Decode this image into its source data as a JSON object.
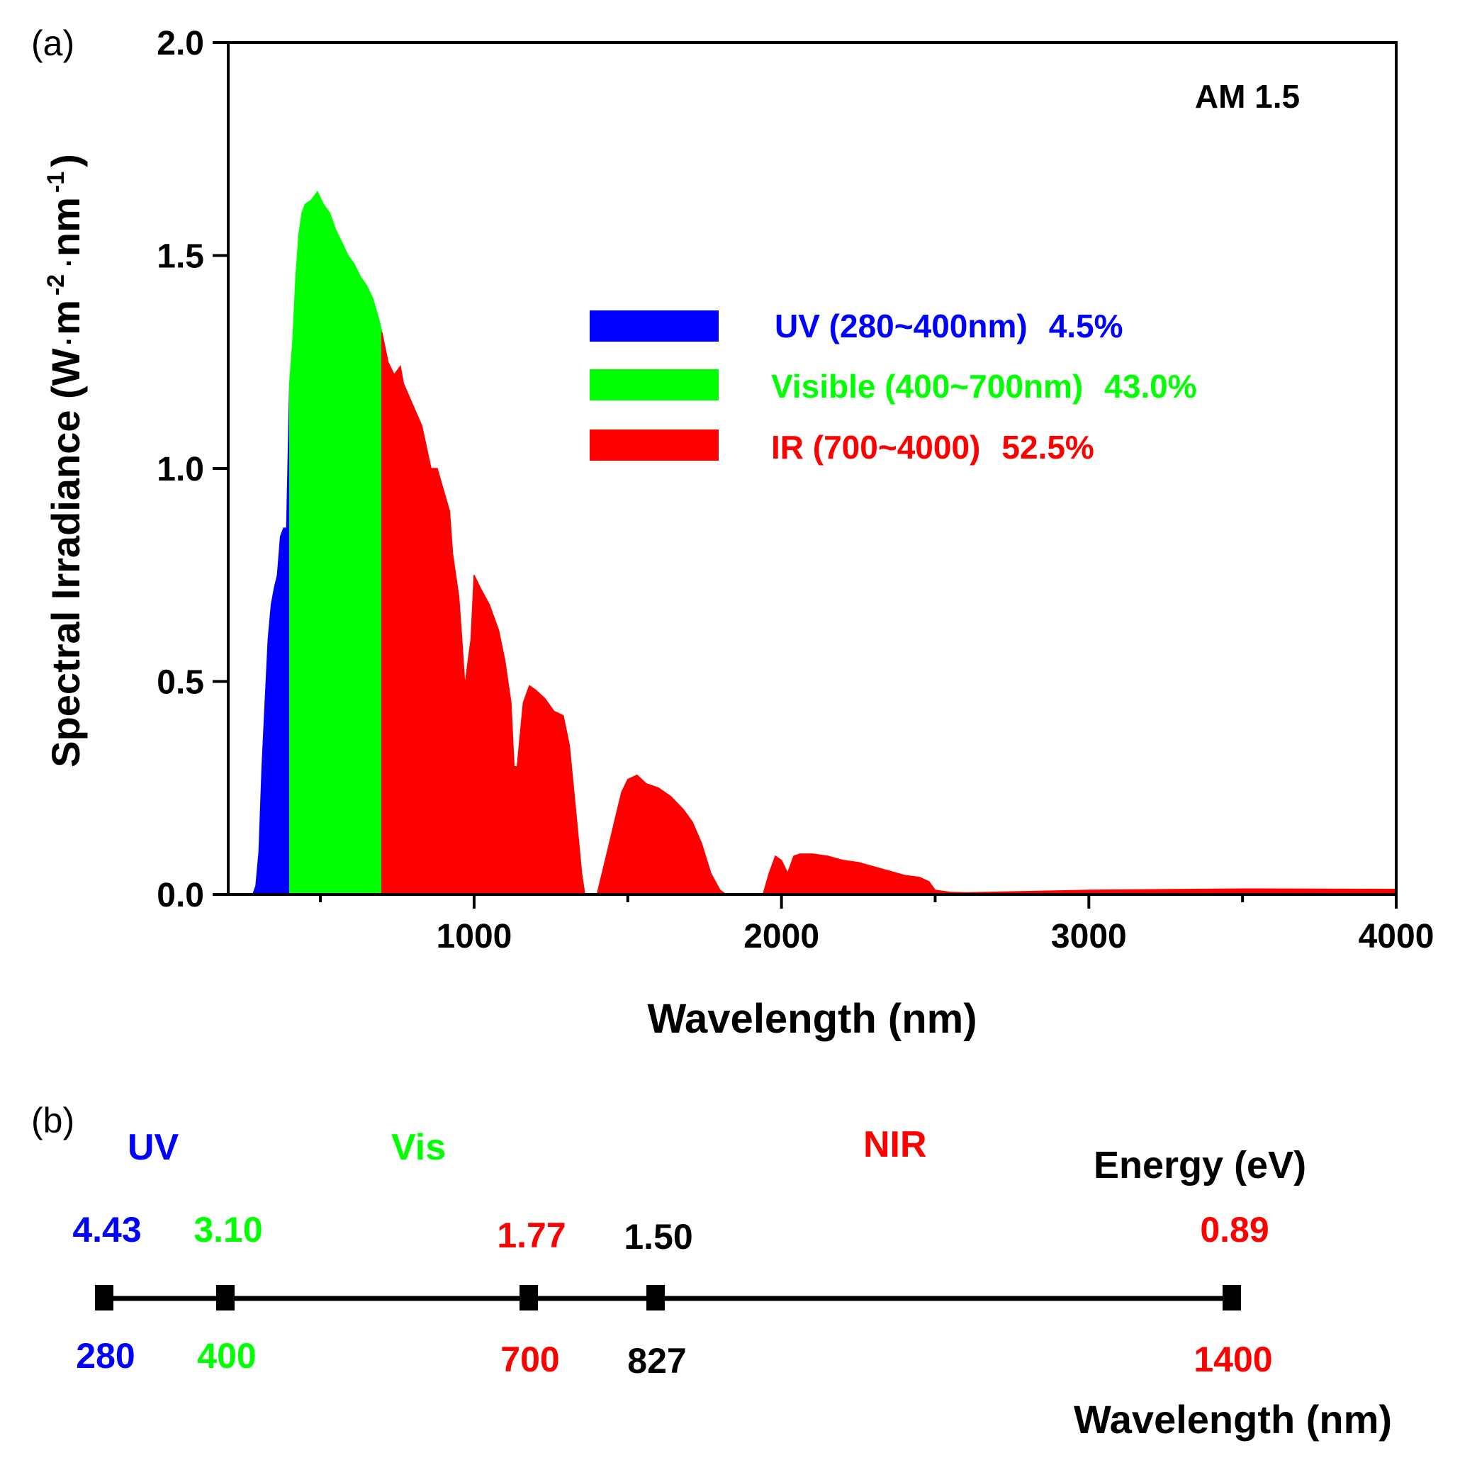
{
  "panel_a": {
    "label": "(a)",
    "chart_data": {
      "type": "area",
      "title": "AM 1.5",
      "xlabel": "Wavelength (nm)",
      "ylabel_main": "Spectral Irradiance (W",
      "ylabel_dot1": "·",
      "ylabel_m": "m",
      "ylabel_sup1": "-2",
      "ylabel_dot2": "·",
      "ylabel_nm": "nm",
      "ylabel_sup2": "-1",
      "ylabel_close": ")",
      "xlim": [
        200,
        4000
      ],
      "ylim": [
        0.0,
        2.0
      ],
      "xticks": [
        1000,
        2000,
        3000,
        4000
      ],
      "xtick_labels": [
        "1000",
        "2000",
        "3000",
        "4000"
      ],
      "yticks": [
        0.0,
        0.5,
        1.0,
        1.5,
        2.0
      ],
      "ytick_labels": [
        "0.0",
        "0.5",
        "1.0",
        "1.5",
        "2.0"
      ],
      "series": [
        {
          "name": "UV",
          "legend": "UV (280~400nm)",
          "percent": "4.5%",
          "color": "#0000ff",
          "x": [
            280,
            290,
            300,
            310,
            320,
            330,
            340,
            350,
            360,
            370,
            380,
            390,
            400
          ],
          "y": [
            0.0,
            0.02,
            0.1,
            0.3,
            0.45,
            0.6,
            0.68,
            0.72,
            0.75,
            0.84,
            0.86,
            0.86,
            1.2
          ]
        },
        {
          "name": "Visible",
          "legend": "Visible (400~700nm)",
          "percent": "43.0%",
          "color": "#00ff00",
          "x": [
            400,
            410,
            420,
            430,
            440,
            450,
            470,
            490,
            510,
            530,
            550,
            570,
            590,
            610,
            630,
            650,
            670,
            690,
            700
          ],
          "y": [
            1.2,
            1.3,
            1.45,
            1.55,
            1.6,
            1.62,
            1.63,
            1.65,
            1.62,
            1.6,
            1.56,
            1.53,
            1.5,
            1.48,
            1.45,
            1.43,
            1.4,
            1.35,
            1.32
          ]
        },
        {
          "name": "IR",
          "legend": "IR (700~4000)",
          "percent": "52.5%",
          "color": "#ff0000",
          "x": [
            700,
            720,
            740,
            760,
            770,
            800,
            830,
            860,
            880,
            900,
            920,
            930,
            950,
            960,
            970,
            990,
            1000,
            1020,
            1050,
            1080,
            1100,
            1120,
            1130,
            1140,
            1160,
            1180,
            1200,
            1230,
            1260,
            1290,
            1310,
            1330,
            1350,
            1360,
            1380,
            1400,
            1440,
            1460,
            1480,
            1500,
            1530,
            1560,
            1600,
            1640,
            1680,
            1710,
            1740,
            1770,
            1800,
            1820,
            1860,
            1940,
            1960,
            1980,
            2000,
            2020,
            2040,
            2060,
            2100,
            2150,
            2200,
            2250,
            2300,
            2350,
            2400,
            2450,
            2480,
            2500,
            2550,
            2600,
            3000,
            3500,
            4000
          ],
          "y": [
            1.32,
            1.25,
            1.22,
            1.24,
            1.2,
            1.15,
            1.1,
            1.0,
            1.0,
            0.95,
            0.9,
            0.8,
            0.7,
            0.6,
            0.49,
            0.6,
            0.75,
            0.72,
            0.68,
            0.62,
            0.55,
            0.45,
            0.3,
            0.3,
            0.45,
            0.49,
            0.48,
            0.46,
            0.43,
            0.42,
            0.35,
            0.2,
            0.05,
            0.0,
            0.0,
            0.0,
            0.12,
            0.18,
            0.24,
            0.27,
            0.28,
            0.26,
            0.25,
            0.23,
            0.2,
            0.17,
            0.12,
            0.05,
            0.01,
            0.0,
            0.0,
            0.0,
            0.05,
            0.09,
            0.08,
            0.05,
            0.09,
            0.095,
            0.095,
            0.09,
            0.08,
            0.075,
            0.065,
            0.055,
            0.045,
            0.04,
            0.03,
            0.01,
            0.005,
            0.004,
            0.01,
            0.013,
            0.012
          ]
        }
      ]
    }
  },
  "panel_b": {
    "label": "(b)",
    "band_labels": [
      {
        "text": "UV",
        "color": "#0000ff"
      },
      {
        "text": "Vis",
        "color": "#00ff00"
      },
      {
        "text": "NIR",
        "color": "#ff0000"
      }
    ],
    "energy_title": "Energy (eV)",
    "wavelength_title": "Wavelength (nm)",
    "ticks": [
      {
        "wavelength": "280",
        "energy": "4.43",
        "color": "#0000ff"
      },
      {
        "wavelength": "400",
        "energy": "3.10",
        "color": "#00ff00"
      },
      {
        "wavelength": "700",
        "energy": "1.77",
        "color": "#ff0000"
      },
      {
        "wavelength": "827",
        "energy": "1.50",
        "color": "#000000"
      },
      {
        "wavelength": "1400",
        "energy": "0.89",
        "color": "#ff0000"
      }
    ]
  }
}
